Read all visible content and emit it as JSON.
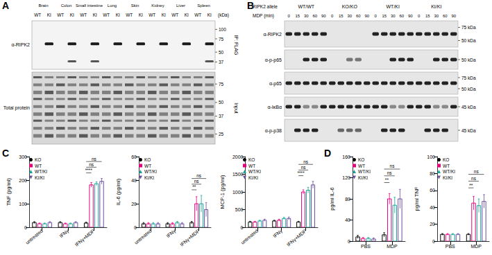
{
  "panels": [
    "A",
    "B",
    "C",
    "D"
  ],
  "blot_A": {
    "tissues": [
      "Brain",
      "Colon",
      "Small intestine",
      "Lung",
      "Skin",
      "Kidney",
      "Liver",
      "Spleen"
    ],
    "genotypes": [
      "WT",
      "KI"
    ],
    "unit": "(kDa)",
    "rows": [
      {
        "label": "α-RIPK2",
        "side_label": "IP: FLAG",
        "markers": [
          100,
          75,
          50,
          37
        ]
      },
      {
        "label": "Total protein",
        "side_label": "Input",
        "markers": [
          75,
          50,
          37,
          25
        ]
      }
    ]
  },
  "blot_B": {
    "allele_label": "RIPK2 allele",
    "groups": [
      "WT/WT",
      "KO/KO",
      "WT/KI",
      "KI/KI"
    ],
    "time_label": "MDP (min)",
    "times": [
      0,
      15,
      30,
      60,
      90
    ],
    "rows": [
      {
        "label": "α-RIPK2",
        "markers": [
          "75 kDa",
          "50 kDa"
        ]
      },
      {
        "label": "α-p-p65",
        "markers": [
          "50 kDa"
        ]
      },
      {
        "label": "α-p65",
        "markers": [
          "75 kDa",
          "50 kDa"
        ]
      },
      {
        "label": "α-IκBα",
        "markers": [
          "45 kDa"
        ]
      },
      {
        "label": "α-p-p38",
        "markers": [
          "45 kDa"
        ]
      }
    ]
  },
  "chart_data": [
    {
      "type": "bar",
      "y_label": "TNF (pg/ml)",
      "categories": [
        "untreated",
        "IFNγ",
        "IFNγ+MDP"
      ],
      "series": [
        {
          "name": "KO",
          "color": "#000000",
          "marker": "circle",
          "values": [
            20,
            20,
            18
          ],
          "errors": [
            4,
            4,
            4
          ]
        },
        {
          "name": "WT",
          "color": "#e5007d",
          "marker": "square",
          "values": [
            15,
            15,
            180
          ],
          "errors": [
            3,
            3,
            10
          ]
        },
        {
          "name": "WT/KI",
          "color": "#17a398",
          "marker": "triangle",
          "values": [
            15,
            15,
            185
          ],
          "errors": [
            3,
            3,
            8
          ]
        },
        {
          "name": "KI/KI",
          "color": "#6b4ea0",
          "marker": "triangle-down",
          "values": [
            20,
            20,
            195
          ],
          "errors": [
            4,
            4,
            12
          ]
        }
      ],
      "ylim": [
        0,
        300
      ],
      "yticks": [
        0,
        100,
        200,
        300
      ],
      "grid": false,
      "legend": "upper left",
      "annotations": [
        {
          "label": "****",
          "category": "IFNγ+MDP",
          "from": "KO",
          "to": "WT"
        },
        {
          "label": "ns",
          "category": "IFNγ+MDP",
          "from": "KO",
          "to": "WT/KI"
        },
        {
          "label": "ns",
          "category": "IFNγ+MDP",
          "from": "KO",
          "to": "KI/KI"
        }
      ]
    },
    {
      "type": "bar",
      "y_label": "IL-6 (pg/ml)",
      "categories": [
        "untreated",
        "IFNγ",
        "IFNγ+MDP"
      ],
      "series": [
        {
          "name": "KO",
          "color": "#000000",
          "marker": "circle",
          "values": [
            3,
            3,
            4
          ],
          "errors": [
            1,
            1,
            1
          ]
        },
        {
          "name": "WT",
          "color": "#e5007d",
          "marker": "square",
          "values": [
            3,
            3,
            20
          ],
          "errors": [
            1,
            1,
            6
          ]
        },
        {
          "name": "WT/KI",
          "color": "#17a398",
          "marker": "triangle",
          "values": [
            3,
            4,
            20
          ],
          "errors": [
            1,
            1,
            7
          ]
        },
        {
          "name": "KI/KI",
          "color": "#6b4ea0",
          "marker": "triangle-down",
          "values": [
            3,
            3,
            15
          ],
          "errors": [
            1,
            1,
            6
          ]
        }
      ],
      "ylim": [
        0,
        60
      ],
      "yticks": [
        0,
        20,
        40,
        60
      ],
      "grid": false,
      "legend": "upper left",
      "annotations": [
        {
          "label": "**",
          "category": "IFNγ+MDP",
          "from": "KO",
          "to": "WT"
        },
        {
          "label": "ns",
          "category": "IFNγ+MDP",
          "from": "KO",
          "to": "WT/KI"
        },
        {
          "label": "ns",
          "category": "IFNγ+MDP",
          "from": "KO",
          "to": "KI/KI"
        }
      ]
    },
    {
      "type": "bar",
      "y_label": "MCP-1 (pg/ml)",
      "categories": [
        "untreated",
        "IFNγ",
        "IFNγ+MDP"
      ],
      "series": [
        {
          "name": "KO",
          "color": "#000000",
          "marker": "circle",
          "values": [
            150,
            180,
            150
          ],
          "errors": [
            20,
            20,
            20
          ]
        },
        {
          "name": "WT",
          "color": "#e5007d",
          "marker": "square",
          "values": [
            150,
            200,
            1000
          ],
          "errors": [
            20,
            30,
            60
          ]
        },
        {
          "name": "WT/KI",
          "color": "#17a398",
          "marker": "triangle",
          "values": [
            180,
            250,
            1050
          ],
          "errors": [
            20,
            30,
            80
          ]
        },
        {
          "name": "KI/KI",
          "color": "#6b4ea0",
          "marker": "triangle-down",
          "values": [
            200,
            250,
            1200
          ],
          "errors": [
            30,
            40,
            100
          ]
        }
      ],
      "ylim": [
        0,
        2000
      ],
      "yticks": [
        0,
        500,
        1000,
        1500,
        2000
      ],
      "grid": false,
      "legend": "upper left",
      "annotations": [
        {
          "label": "****",
          "category": "IFNγ+MDP",
          "from": "KO",
          "to": "WT"
        },
        {
          "label": "ns",
          "category": "IFNγ+MDP",
          "from": "KO",
          "to": "WT/KI"
        },
        {
          "label": "ns",
          "category": "IFNγ+MDP",
          "from": "KO",
          "to": "KI/KI"
        }
      ]
    },
    {
      "type": "bar",
      "y_label": "pg/ml IL-6",
      "categories": [
        "PBS",
        "MDP"
      ],
      "series": [
        {
          "name": "KO",
          "color": "#000000",
          "marker": "circle",
          "values": [
            8,
            12
          ],
          "errors": [
            3,
            4
          ]
        },
        {
          "name": "WT",
          "color": "#e5007d",
          "marker": "square",
          "values": [
            5,
            80
          ],
          "errors": [
            2,
            10
          ]
        },
        {
          "name": "WT/KI",
          "color": "#17a398",
          "marker": "triangle",
          "values": [
            5,
            68
          ],
          "errors": [
            2,
            15
          ]
        },
        {
          "name": "KI/KI",
          "color": "#6b4ea0",
          "marker": "triangle-down",
          "values": [
            4,
            80
          ],
          "errors": [
            2,
            18
          ]
        }
      ],
      "ylim": [
        0,
        160
      ],
      "yticks": [
        0,
        40,
        80,
        120,
        160
      ],
      "grid": false,
      "legend": "upper left",
      "annotations": [
        {
          "label": "**",
          "category": "MDP",
          "from": "KO",
          "to": "WT"
        },
        {
          "label": "ns",
          "category": "MDP",
          "from": "KO",
          "to": "WT/KI"
        },
        {
          "label": "ns",
          "category": "MDP",
          "from": "KO",
          "to": "KI/KI"
        }
      ]
    },
    {
      "type": "bar",
      "y_label": "pg/ml TNF",
      "categories": [
        "PBS",
        "MDP"
      ],
      "series": [
        {
          "name": "KO",
          "color": "#000000",
          "marker": "circle",
          "values": [
            8,
            8
          ],
          "errors": [
            1,
            1
          ]
        },
        {
          "name": "WT",
          "color": "#e5007d",
          "marker": "square",
          "values": [
            8,
            45
          ],
          "errors": [
            1,
            8
          ]
        },
        {
          "name": "WT/KI",
          "color": "#17a398",
          "marker": "triangle",
          "values": [
            8,
            42
          ],
          "errors": [
            1,
            8
          ]
        },
        {
          "name": "KI/KI",
          "color": "#6b4ea0",
          "marker": "triangle-down",
          "values": [
            8,
            47
          ],
          "errors": [
            1,
            8
          ]
        }
      ],
      "ylim": [
        0,
        100
      ],
      "yticks": [
        0,
        20,
        40,
        60,
        80,
        100
      ],
      "grid": false,
      "legend": "upper left",
      "annotations": [
        {
          "label": "**",
          "category": "MDP",
          "from": "KO",
          "to": "WT"
        },
        {
          "label": "ns",
          "category": "MDP",
          "from": "KO",
          "to": "WT/KI"
        },
        {
          "label": "ns",
          "category": "MDP",
          "from": "KO",
          "to": "KI/KI"
        }
      ]
    }
  ]
}
